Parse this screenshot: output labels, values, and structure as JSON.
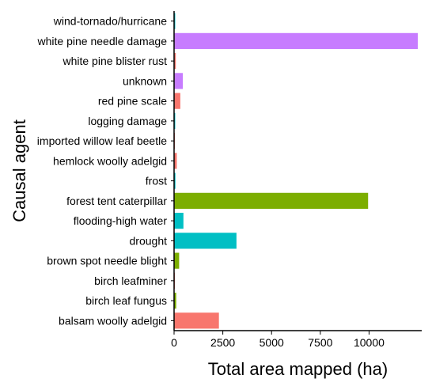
{
  "chart_data": {
    "type": "bar",
    "orientation": "horizontal",
    "title": "",
    "xlabel": "Total area mapped (ha)",
    "ylabel": "Causal agent",
    "xlim": [
      0,
      12700
    ],
    "xticks": [
      0,
      2500,
      5000,
      7500,
      10000
    ],
    "xtick_labels": [
      "0",
      "2500",
      "5000",
      "7500",
      "10000"
    ],
    "grid": false,
    "legend": "none",
    "categories": [
      "wind-tornado/hurricane",
      "white pine needle damage",
      "white pine blister rust",
      "unknown",
      "red pine scale",
      "logging damage",
      "imported willow leaf beetle",
      "hemlock woolly adelgid",
      "frost",
      "forest tent caterpillar",
      "flooding-high water",
      "drought",
      "brown spot needle blight",
      "birch leafminer",
      "birch leaf fungus",
      "balsam woolly adelgid"
    ],
    "values": [
      60,
      12500,
      90,
      450,
      320,
      60,
      20,
      140,
      70,
      9950,
      480,
      3200,
      260,
      20,
      110,
      2300
    ],
    "colors": [
      "#00BFC4",
      "#C77CFF",
      "#F8766D",
      "#C77CFF",
      "#F8766D",
      "#00BFC4",
      "#F8766D",
      "#F8766D",
      "#00BFC4",
      "#7CAE00",
      "#00BFC4",
      "#00BFC4",
      "#7CAE00",
      "#F8766D",
      "#7CAE00",
      "#F8766D"
    ]
  }
}
